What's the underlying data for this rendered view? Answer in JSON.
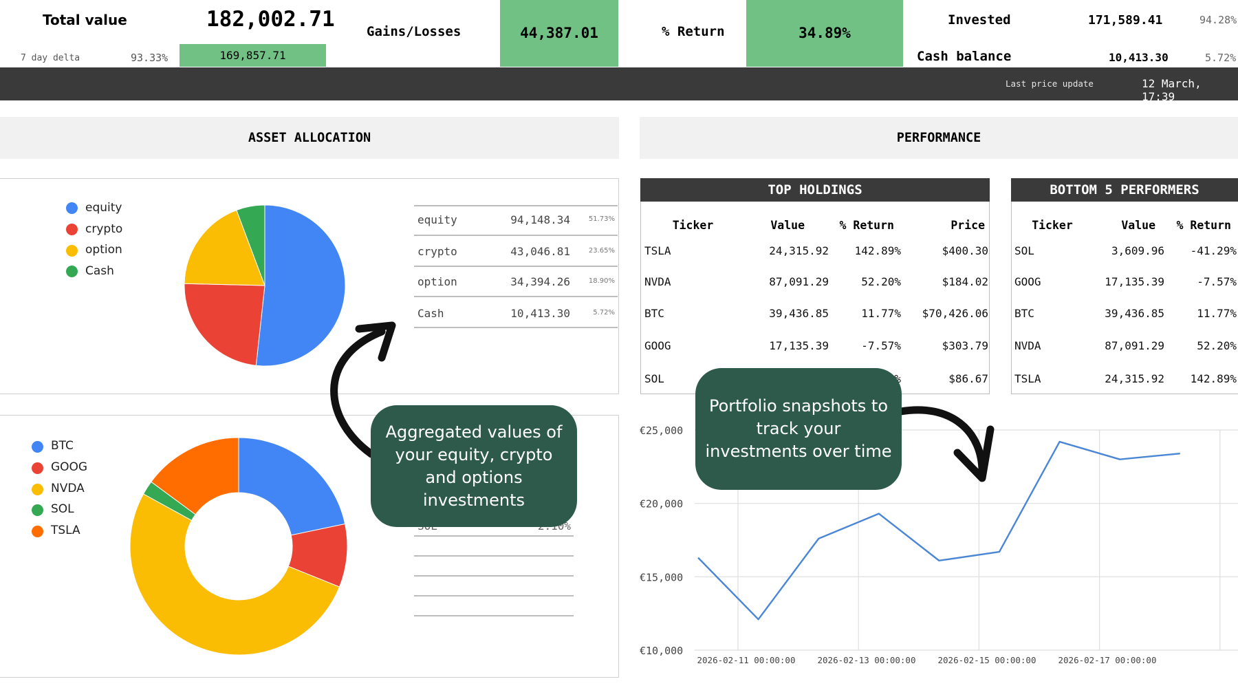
{
  "summary": {
    "total_value_label": "Total value",
    "total_value": "182,002.71",
    "seven_day_label": "7 day delta",
    "seven_day_pct": "93.33%",
    "seven_day_value": "169,857.71",
    "gains_label": "Gains/Losses",
    "gains_value": "44,387.01",
    "return_label": "% Return",
    "return_value": "34.89%",
    "invested_label": "Invested",
    "invested_value": "171,589.41",
    "invested_pct": "94.28%",
    "cash_label": "Cash balance",
    "cash_value": "10,413.30",
    "cash_pct": "5.72%",
    "last_update_label": "Last price update",
    "last_update_value": "12 March, 17:39",
    "colors": {
      "green": "#71c185",
      "dark_bar": "#3a3a3a"
    }
  },
  "allocation": {
    "section_title": "ASSET ALLOCATION",
    "legend": [
      {
        "label": "equity",
        "color": "#4285f4"
      },
      {
        "label": "crypto",
        "color": "#ea4335"
      },
      {
        "label": "option",
        "color": "#fbbc04"
      },
      {
        "label": "Cash",
        "color": "#34a853"
      }
    ],
    "rows": [
      {
        "name": "equity",
        "value": "94,148.34",
        "pct": "51.73%"
      },
      {
        "name": "crypto",
        "value": "43,046.81",
        "pct": "23.65%"
      },
      {
        "name": "option",
        "value": "34,394.26",
        "pct": "18.90%"
      },
      {
        "name": "Cash",
        "value": "10,413.30",
        "pct": "5.72%"
      }
    ],
    "holdings_legend": [
      {
        "label": "BTC",
        "color": "#4285f4"
      },
      {
        "label": "GOOG",
        "color": "#ea4335"
      },
      {
        "label": "NVDA",
        "color": "#fbbc04"
      },
      {
        "label": "SOL",
        "color": "#34a853"
      },
      {
        "label": "TSLA",
        "color": "#ff6d01"
      }
    ],
    "partial_row": {
      "name": "SOL",
      "pct": "2.10%"
    }
  },
  "performance": {
    "section_title": "PERFORMANCE",
    "top_holdings": {
      "title": "TOP HOLDINGS",
      "headers": [
        "Ticker",
        "Value",
        "% Return",
        "Price"
      ],
      "rows": [
        {
          "ticker": "TSLA",
          "value": "24,315.92",
          "ret": "142.89%",
          "price": "$400.30",
          "dir": "pos"
        },
        {
          "ticker": "NVDA",
          "value": "87,091.29",
          "ret": "52.20%",
          "price": "$184.02",
          "dir": "pos"
        },
        {
          "ticker": "BTC",
          "value": "39,436.85",
          "ret": "11.77%",
          "price": "$70,426.06",
          "dir": "pos"
        },
        {
          "ticker": "GOOG",
          "value": "17,135.39",
          "ret": "-7.57%",
          "price": "$303.79",
          "dir": "neg"
        },
        {
          "ticker": "SOL",
          "value": "",
          "ret": "%",
          "price": "$86.67",
          "dir": "neg"
        }
      ]
    },
    "bottom_performers": {
      "title": "BOTTOM 5 PERFORMERS",
      "headers": [
        "Ticker",
        "Value",
        "% Return"
      ],
      "rows": [
        {
          "ticker": "SOL",
          "value": "3,609.96",
          "ret": "-41.29%",
          "dir": "neg"
        },
        {
          "ticker": "GOOG",
          "value": "17,135.39",
          "ret": "-7.57%",
          "dir": "neg"
        },
        {
          "ticker": "BTC",
          "value": "39,436.85",
          "ret": "11.77%",
          "dir": "pos"
        },
        {
          "ticker": "NVDA",
          "value": "87,091.29",
          "ret": "52.20%",
          "dir": "pos"
        },
        {
          "ticker": "TSLA",
          "value": "24,315.92",
          "ret": "142.89%",
          "dir": "pos"
        }
      ]
    }
  },
  "callouts": {
    "allocation": "Aggregated values of your equity, crypto and options investments",
    "snapshots": "Portfolio snapshots to track your investments over time"
  },
  "chart_data": [
    {
      "type": "pie",
      "categories": [
        "equity",
        "crypto",
        "option",
        "Cash"
      ],
      "values": [
        51.73,
        23.65,
        18.9,
        5.72
      ],
      "colors": [
        "#4285f4",
        "#ea4335",
        "#fbbc04",
        "#34a853"
      ]
    },
    {
      "type": "pie",
      "donut": true,
      "categories": [
        "BTC",
        "GOOG",
        "NVDA",
        "SOL",
        "TSLA"
      ],
      "values": [
        21.7,
        9.4,
        51.9,
        2.1,
        14.9
      ],
      "colors": [
        "#4285f4",
        "#ea4335",
        "#fbbc04",
        "#34a853",
        "#ff6d01"
      ]
    },
    {
      "type": "line",
      "x": [
        "2026-02-11 00:00:00",
        "2026-02-12 00:00:00",
        "2026-02-13 00:00:00",
        "2026-02-14 00:00:00",
        "2026-02-15 00:00:00",
        "2026-02-16 00:00:00",
        "2026-02-17 00:00:00",
        "2026-02-18 00:00:00",
        "2026-02-19 00:00:00"
      ],
      "x_tick_labels": [
        "2026-02-11 00:00:00",
        "2026-02-13 00:00:00",
        "2026-02-15 00:00:00",
        "2026-02-17 00:00:00"
      ],
      "values": [
        16300,
        12100,
        17600,
        19300,
        16100,
        16700,
        24200,
        23000,
        23400
      ],
      "y_tick_labels": [
        "€25,000",
        "€20,000",
        "€15,000",
        "€10,000"
      ],
      "y_ticks": [
        25000,
        20000,
        15000,
        10000
      ],
      "ylim": [
        10000,
        25000
      ],
      "grid": true,
      "color": "#4a86d6"
    }
  ]
}
